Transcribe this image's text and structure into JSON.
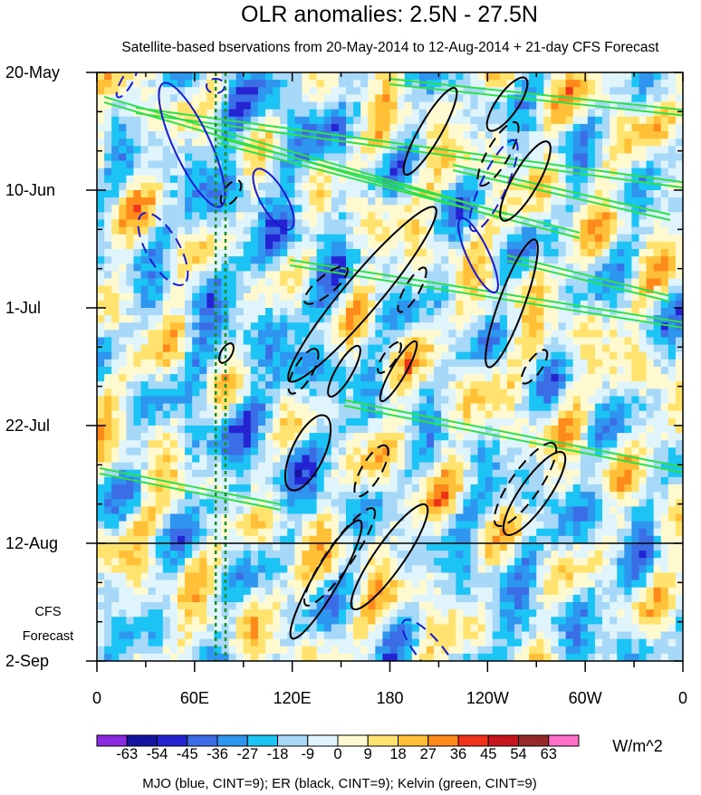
{
  "chart_data": {
    "type": "heatmap",
    "title": "OLR anomalies: 2.5N - 27.5N",
    "subtitle": "Satellite-based bservations from 20-May-2014 to 12-Aug-2014 + 21-day CFS Forecast",
    "x_ticks": [
      "0",
      "60E",
      "120E",
      "180",
      "120W",
      "60W",
      "0"
    ],
    "x_range": [
      0,
      360
    ],
    "y_ticks": [
      "20-May",
      "10-Jun",
      "1-Jul",
      "22-Jul",
      "12-Aug",
      "2-Sep"
    ],
    "y_range": [
      "2014-05-20",
      "2014-09-02"
    ],
    "forecast_start": "2014-08-12",
    "forecast_label_lines": [
      "CFS",
      "Forecast"
    ],
    "colorbar": {
      "labels": [
        "-63",
        "-54",
        "-45",
        "-36",
        "-27",
        "-18",
        "-9",
        "0",
        "9",
        "18",
        "27",
        "36",
        "45",
        "54",
        "63"
      ],
      "colors": [
        "#8a2be2",
        "#1414a0",
        "#2424d2",
        "#3b6ee6",
        "#2f96f0",
        "#1cc4f5",
        "#a8d8f8",
        "#dff4fb",
        "#fff9cf",
        "#ffe36e",
        "#ffc037",
        "#ff8a1c",
        "#f03218",
        "#c8141e",
        "#962828",
        "#ff6ec8"
      ],
      "units": "W/m^2"
    },
    "vertical_lines_lon": [
      73,
      79
    ],
    "vertical_line_color": "#1e8c28",
    "overlays": [
      {
        "name": "MJO",
        "color": "#1a1ad2"
      },
      {
        "name": "ER",
        "color": "#000000"
      },
      {
        "name": "Kelvin",
        "color": "#2ee04a"
      }
    ],
    "footer": "MJO (blue, CINT=9); ER (black, CINT=9); Kelvin (green, CINT=9)"
  }
}
